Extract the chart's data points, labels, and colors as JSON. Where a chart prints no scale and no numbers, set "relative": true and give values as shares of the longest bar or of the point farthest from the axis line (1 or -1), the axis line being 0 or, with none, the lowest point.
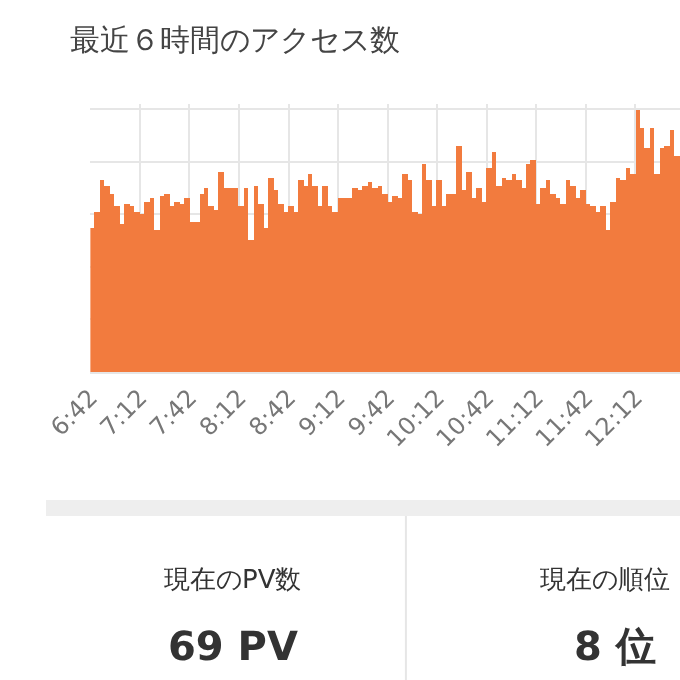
{
  "chart_data": [
    {
      "type": "bar",
      "title": "最近６時間のアクセス数",
      "relative": true,
      "grid": true,
      "color": "#f27b3e",
      "x": [
        6.725,
        6.775,
        6.825,
        6.875,
        6.925,
        6.975,
        7.025,
        7.075,
        7.125,
        7.175,
        7.225,
        7.275,
        7.325,
        7.375,
        7.425,
        7.475,
        7.525,
        7.575,
        7.625,
        7.675,
        7.725,
        7.775,
        7.825,
        7.875,
        7.925,
        7.975,
        8.025,
        8.075,
        8.125,
        8.175,
        8.225,
        8.275,
        8.325,
        8.375,
        8.425,
        8.475,
        8.525,
        8.575,
        8.625,
        8.675,
        8.725,
        8.775,
        8.825,
        8.875,
        8.925,
        8.975,
        9.025,
        9.075,
        9.125,
        9.175,
        9.225,
        9.275,
        9.325,
        9.375,
        9.425,
        9.475,
        9.525,
        9.575,
        9.625,
        9.675,
        9.725,
        9.775,
        9.825,
        9.875,
        9.925,
        9.975,
        10.025,
        10.075,
        10.125,
        10.175,
        10.225,
        10.275,
        10.325,
        10.375,
        10.425,
        10.475,
        10.525,
        10.575,
        10.625,
        10.675,
        10.725,
        10.775,
        10.825,
        10.875,
        10.925,
        10.975,
        11.025,
        11.075,
        11.125,
        11.175,
        11.225,
        11.275,
        11.325,
        11.375,
        11.425,
        11.475,
        11.525,
        11.575,
        11.625,
        11.675,
        11.725,
        11.775,
        11.825,
        11.875,
        11.925,
        11.975,
        12.025,
        12.075,
        12.125,
        12.175,
        12.225,
        12.275,
        12.325,
        12.375,
        12.425,
        12.475,
        12.525,
        12.575,
        12.625
      ],
      "values": [
        0.55,
        0.61,
        0.73,
        0.71,
        0.68,
        0.63,
        0.56,
        0.64,
        0.63,
        0.61,
        0.6,
        0.65,
        0.66,
        0.54,
        0.67,
        0.68,
        0.63,
        0.65,
        0.64,
        0.66,
        0.57,
        0.57,
        0.68,
        0.7,
        0.63,
        0.62,
        0.76,
        0.7,
        0.7,
        0.7,
        0.63,
        0.7,
        0.5,
        0.71,
        0.64,
        0.55,
        0.74,
        0.69,
        0.64,
        0.61,
        0.63,
        0.61,
        0.73,
        0.71,
        0.75,
        0.71,
        0.63,
        0.71,
        0.63,
        0.61,
        0.66,
        0.66,
        0.66,
        0.7,
        0.69,
        0.71,
        0.72,
        0.7,
        0.71,
        0.68,
        0.65,
        0.67,
        0.66,
        0.75,
        0.73,
        0.61,
        0.6,
        0.79,
        0.73,
        0.63,
        0.73,
        0.63,
        0.68,
        0.68,
        0.86,
        0.69,
        0.76,
        0.66,
        0.7,
        0.65,
        0.78,
        0.84,
        0.71,
        0.74,
        0.73,
        0.75,
        0.73,
        0.7,
        0.79,
        0.81,
        0.64,
        0.7,
        0.73,
        0.68,
        0.66,
        0.64,
        0.73,
        0.71,
        0.66,
        0.69,
        0.64,
        0.63,
        0.61,
        0.63,
        0.54,
        0.65,
        0.74,
        0.73,
        0.78,
        0.75,
        1,
        0.93,
        0.85,
        0.93,
        0.75,
        0.85,
        0.86,
        0.92,
        0.82
      ],
      "xlim": [
        6.7,
        12.65
      ],
      "xticks": [
        {
          "value": 6.7,
          "label": "6:42"
        },
        {
          "value": 7.2,
          "label": "7:12"
        },
        {
          "value": 7.7,
          "label": "7:42"
        },
        {
          "value": 8.2,
          "label": "8:12"
        },
        {
          "value": 8.7,
          "label": "8:42"
        },
        {
          "value": 9.2,
          "label": "9:12"
        },
        {
          "value": 9.7,
          "label": "9:42"
        },
        {
          "value": 10.2,
          "label": "10:12"
        },
        {
          "value": 10.7,
          "label": "10:42"
        },
        {
          "value": 11.2,
          "label": "11:12"
        },
        {
          "value": 11.7,
          "label": "11:42"
        },
        {
          "value": 12.2,
          "label": "12:12"
        }
      ]
    },
    {
      "type": "other",
      "annotations": [
        "現在のPV数",
        "69 PV",
        "現在の順位",
        "8 位"
      ]
    }
  ]
}
